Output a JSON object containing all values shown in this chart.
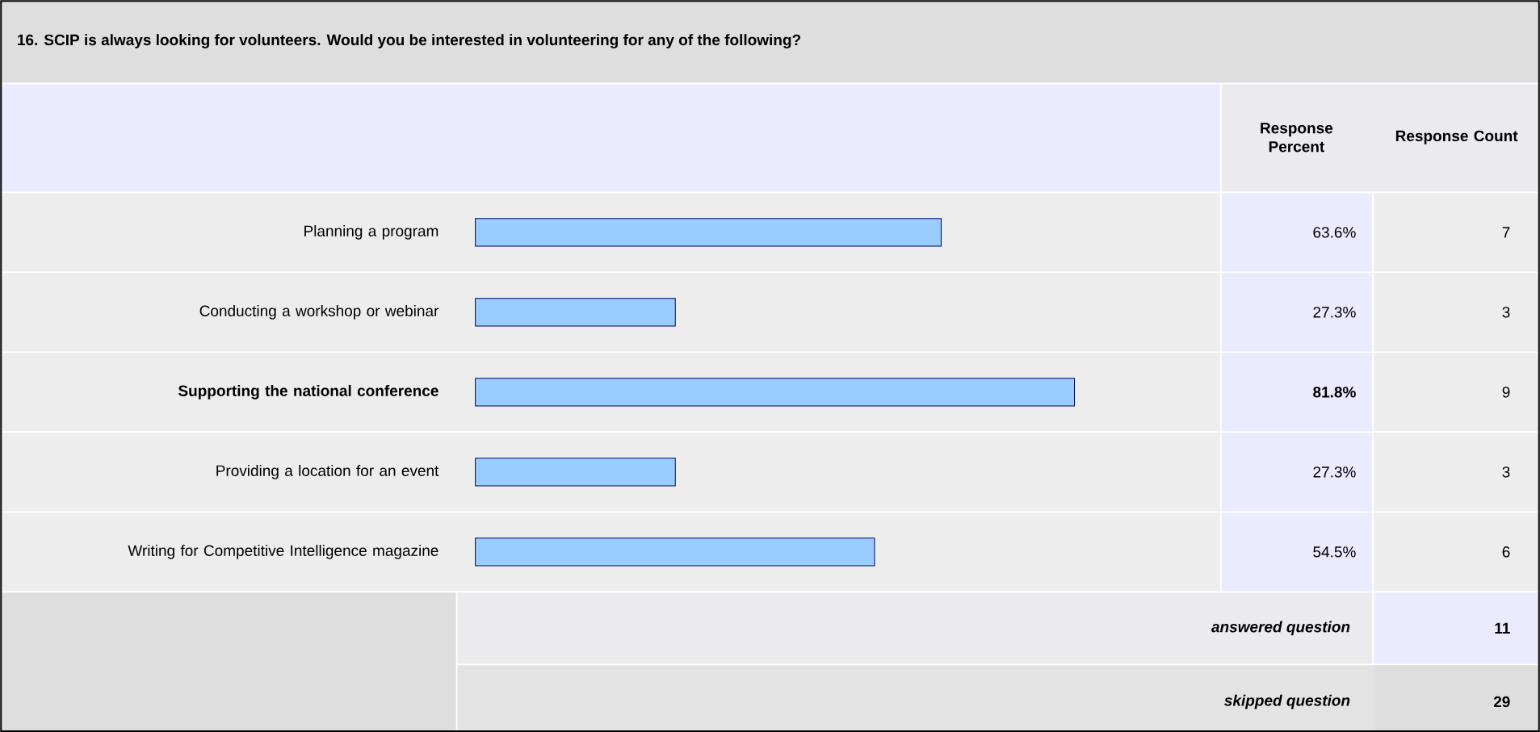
{
  "chart_data": {
    "type": "bar",
    "orientation": "horizontal",
    "title": "16. SCIP is always looking for volunteers. Would you be interested in volunteering for any of the following?",
    "categories": [
      "Planning a program",
      "Conducting a workshop or webinar",
      "Supporting the national conference",
      "Providing a location for an event",
      "Writing for Competitive Intelligence magazine"
    ],
    "values": [
      63.6,
      27.3,
      81.8,
      27.3,
      54.5
    ],
    "value_labels": [
      "63.6%",
      "27.3%",
      "81.8%",
      "27.3%",
      "54.5%"
    ],
    "color": "#99ccff",
    "annotations": [
      "Response Percent",
      "Response Count",
      "7",
      "3",
      "9",
      "3",
      "6",
      "answered question",
      "11",
      "skipped question",
      "29"
    ]
  }
}
